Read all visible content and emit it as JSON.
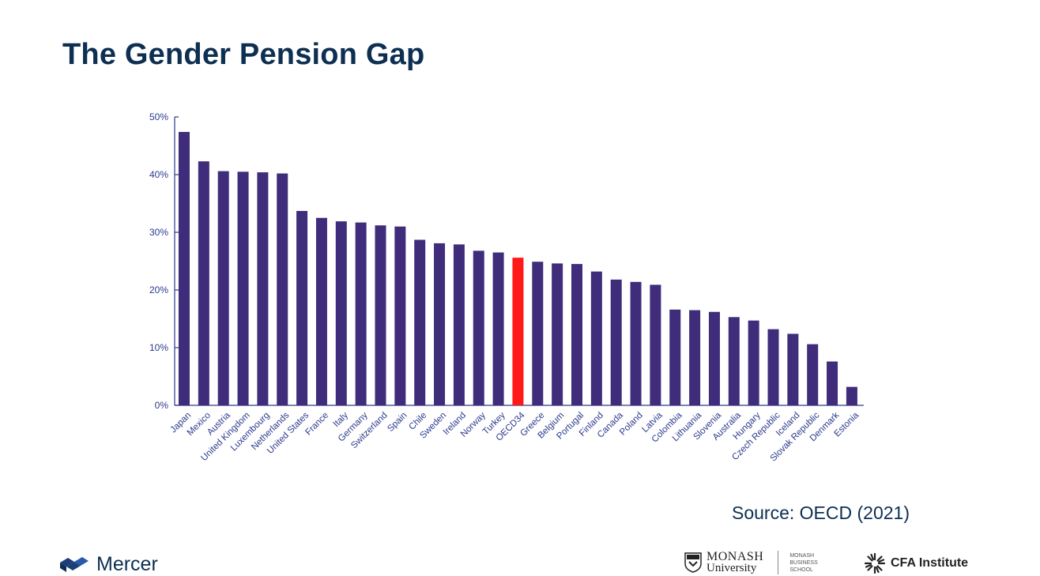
{
  "slide": {
    "title": "The Gender Pension Gap",
    "source": "Source: OECD (2021)"
  },
  "footer": {
    "mercer": "Mercer",
    "monash_line1": "MONASH",
    "monash_line2": "University",
    "monash_school": [
      "MONASH",
      "BUSINESS",
      "SCHOOL"
    ],
    "cfa": "CFA Institute"
  },
  "colors": {
    "bar": "#3f2c7a",
    "highlight": "#ff1a1a",
    "axis": "#2b3a8c",
    "title": "#0d2f52"
  },
  "chart_data": {
    "type": "bar",
    "title": "",
    "xlabel": "",
    "ylabel": "",
    "ylim": [
      0,
      50
    ],
    "yticks": [
      "0%",
      "10%",
      "20%",
      "30%",
      "40%",
      "50%"
    ],
    "highlight": "OECD34",
    "grid": false,
    "categories": [
      "Japan",
      "Mexico",
      "Austria",
      "United Kingdom",
      "Luxembourg",
      "Netherlands",
      "United States",
      "France",
      "Italy",
      "Germany",
      "Switzerland",
      "Spain",
      "Chile",
      "Sweden",
      "Ireland",
      "Norway",
      "Turkey",
      "OECD34",
      "Greece",
      "Belgium",
      "Portugal",
      "Finland",
      "Canada",
      "Poland",
      "Latvia",
      "Colombia",
      "Lithuania",
      "Slovenia",
      "Australia",
      "Hungary",
      "Czech Republic",
      "Iceland",
      "Slovak Republic",
      "Denmark",
      "Estonia"
    ],
    "values": [
      47.4,
      42.3,
      40.6,
      40.5,
      40.4,
      40.2,
      33.7,
      32.5,
      31.9,
      31.7,
      31.2,
      31.0,
      28.7,
      28.1,
      27.9,
      26.8,
      26.5,
      25.6,
      24.9,
      24.6,
      24.5,
      23.2,
      21.8,
      21.4,
      20.9,
      16.6,
      16.5,
      16.2,
      15.3,
      14.7,
      13.2,
      12.4,
      10.6,
      7.6,
      3.2
    ]
  }
}
